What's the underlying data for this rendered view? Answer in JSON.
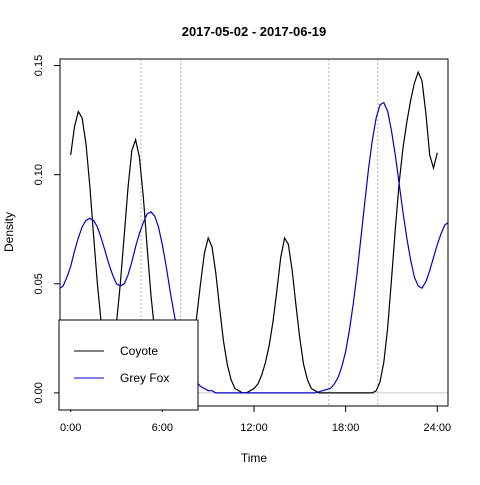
{
  "chart_data": {
    "type": "line",
    "title": "2017-05-02 - 2017-06-19",
    "xlabel": "Time",
    "ylabel": "Density",
    "xlim": [
      -0.7,
      24.7
    ],
    "ylim": [
      -0.006,
      0.153
    ],
    "x_ticks": [
      {
        "value": 0,
        "label": "0:00"
      },
      {
        "value": 6,
        "label": "6:00"
      },
      {
        "value": 12,
        "label": "12:00"
      },
      {
        "value": 18,
        "label": "18:00"
      },
      {
        "value": 24,
        "label": "24:00"
      }
    ],
    "y_ticks": [
      {
        "value": 0.0,
        "label": "0.00"
      },
      {
        "value": 0.05,
        "label": "0.05"
      },
      {
        "value": 0.1,
        "label": "0.10"
      },
      {
        "value": 0.15,
        "label": "0.15"
      }
    ],
    "reference_lines_x": [
      4.6,
      7.2,
      16.9,
      20.1
    ],
    "legend": {
      "position": "bottom-left"
    },
    "series": [
      {
        "name": "Coyote",
        "color": "#000000",
        "x": [
          0.0,
          0.25,
          0.5,
          0.75,
          1.0,
          1.25,
          1.5,
          1.75,
          2.0,
          2.25,
          2.5,
          2.75,
          3.0,
          3.25,
          3.5,
          3.75,
          4.0,
          4.25,
          4.5,
          4.75,
          5.0,
          5.25,
          5.5,
          5.75,
          6.0,
          6.25,
          6.5,
          6.75,
          7.0,
          7.25,
          7.5,
          7.75,
          8.0,
          8.25,
          8.5,
          8.75,
          9.0,
          9.25,
          9.5,
          9.75,
          10.0,
          10.25,
          10.5,
          10.75,
          11.0,
          11.25,
          11.5,
          11.75,
          12.0,
          12.25,
          12.5,
          12.75,
          13.0,
          13.25,
          13.5,
          13.75,
          14.0,
          14.25,
          14.5,
          14.75,
          15.0,
          15.25,
          15.5,
          15.75,
          16.0,
          16.25,
          16.5,
          16.75,
          17.0,
          17.25,
          17.5,
          17.75,
          18.0,
          18.25,
          18.5,
          18.75,
          19.0,
          19.25,
          19.5,
          19.75,
          20.0,
          20.25,
          20.5,
          20.75,
          21.0,
          21.25,
          21.5,
          21.75,
          22.0,
          22.25,
          22.5,
          22.75,
          23.0,
          23.25,
          23.5,
          23.75,
          24.0
        ],
        "values": [
          0.109,
          0.122,
          0.129,
          0.126,
          0.114,
          0.095,
          0.072,
          0.05,
          0.032,
          0.02,
          0.016,
          0.02,
          0.032,
          0.05,
          0.072,
          0.094,
          0.111,
          0.116,
          0.108,
          0.09,
          0.067,
          0.045,
          0.028,
          0.016,
          0.009,
          0.005,
          0.004,
          0.004,
          0.005,
          0.007,
          0.011,
          0.016,
          0.023,
          0.035,
          0.05,
          0.064,
          0.071,
          0.067,
          0.055,
          0.039,
          0.024,
          0.013,
          0.006,
          0.002,
          0.001,
          0.0,
          0.0,
          0.001,
          0.002,
          0.004,
          0.008,
          0.014,
          0.022,
          0.033,
          0.047,
          0.062,
          0.071,
          0.068,
          0.056,
          0.04,
          0.025,
          0.013,
          0.006,
          0.002,
          0.001,
          0.0,
          0.0,
          0.0,
          0.0,
          0.0,
          0.0,
          0.0,
          0.0,
          0.0,
          0.0,
          0.0,
          0.0,
          0.0,
          0.0,
          0.0,
          0.001,
          0.005,
          0.014,
          0.03,
          0.052,
          0.075,
          0.096,
          0.112,
          0.124,
          0.134,
          0.142,
          0.147,
          0.143,
          0.128,
          0.109,
          0.103,
          0.11
        ]
      },
      {
        "name": "Grey Fox",
        "color": "#0000cc",
        "x": [
          -0.7,
          -0.5,
          -0.25,
          0.0,
          0.25,
          0.5,
          0.75,
          1.0,
          1.25,
          1.5,
          1.75,
          2.0,
          2.25,
          2.5,
          2.75,
          3.0,
          3.25,
          3.5,
          3.75,
          4.0,
          4.25,
          4.5,
          4.75,
          5.0,
          5.25,
          5.5,
          5.75,
          6.0,
          6.25,
          6.5,
          6.75,
          7.0,
          7.25,
          7.5,
          7.75,
          8.0,
          8.25,
          8.5,
          8.75,
          9.0,
          9.25,
          9.5,
          9.75,
          10.0,
          10.5,
          11.0,
          12.0,
          13.0,
          14.0,
          15.0,
          16.0,
          16.5,
          17.0,
          17.25,
          17.5,
          17.75,
          18.0,
          18.25,
          18.5,
          18.75,
          19.0,
          19.25,
          19.5,
          19.75,
          20.0,
          20.25,
          20.5,
          20.75,
          21.0,
          21.25,
          21.5,
          21.75,
          22.0,
          22.25,
          22.5,
          22.75,
          23.0,
          23.25,
          23.5,
          23.75,
          24.0,
          24.25,
          24.5,
          24.7
        ],
        "values": [
          0.048,
          0.049,
          0.053,
          0.058,
          0.065,
          0.071,
          0.076,
          0.079,
          0.08,
          0.079,
          0.076,
          0.071,
          0.065,
          0.059,
          0.054,
          0.05,
          0.049,
          0.05,
          0.054,
          0.06,
          0.067,
          0.073,
          0.078,
          0.082,
          0.083,
          0.081,
          0.076,
          0.068,
          0.058,
          0.047,
          0.037,
          0.028,
          0.021,
          0.015,
          0.011,
          0.008,
          0.005,
          0.003,
          0.002,
          0.001,
          0.001,
          0.0,
          0.0,
          0.0,
          0.0,
          0.0,
          0.0,
          0.0,
          0.0,
          0.0,
          0.0,
          0.001,
          0.002,
          0.004,
          0.007,
          0.012,
          0.019,
          0.029,
          0.041,
          0.055,
          0.071,
          0.087,
          0.103,
          0.116,
          0.126,
          0.132,
          0.133,
          0.129,
          0.12,
          0.109,
          0.096,
          0.083,
          0.071,
          0.061,
          0.053,
          0.049,
          0.048,
          0.051,
          0.056,
          0.062,
          0.068,
          0.073,
          0.077,
          0.078
        ]
      }
    ]
  }
}
